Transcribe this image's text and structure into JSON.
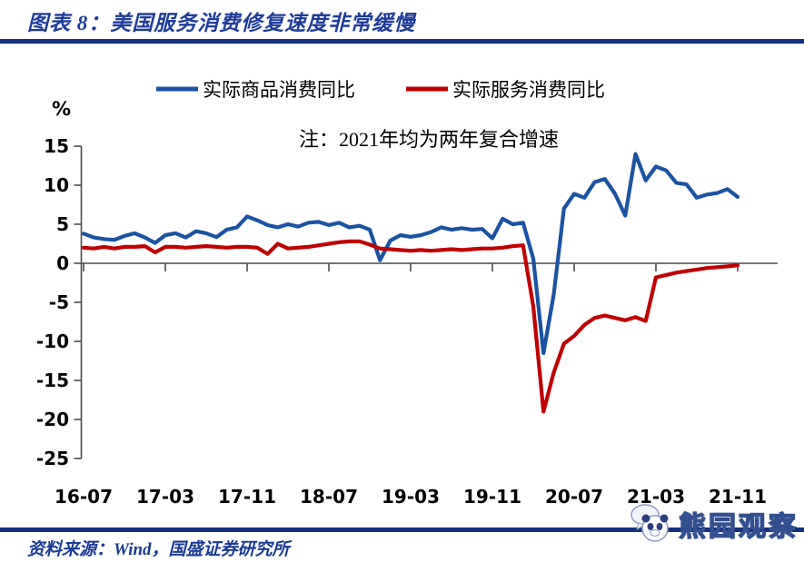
{
  "header": {
    "title": "图表 8：美国服务消费修复速度非常缓慢"
  },
  "footer": {
    "source": "资料来源：Wind，国盛证券研究所",
    "watermark": "熊园观察"
  },
  "colors": {
    "accent_blue_text": "#1a3a94",
    "divider_rule": "#14317c",
    "goods_line": "#1a53a3",
    "services_line": "#c00000",
    "axis": "#4a4a4a"
  },
  "chart_data": {
    "type": "line",
    "unit_label": "%",
    "note": "注：2021年均为两年复合增速",
    "legend_position": "top",
    "grid": false,
    "ylim": [
      -25,
      15
    ],
    "y_ticks": [
      15,
      10,
      5,
      0,
      -5,
      -10,
      -15,
      -20,
      -25
    ],
    "x_tick_labels": [
      "16-07",
      "17-03",
      "17-11",
      "18-07",
      "19-03",
      "19-11",
      "20-07",
      "21-03",
      "21-11"
    ],
    "x": [
      "16-07",
      "16-08",
      "16-09",
      "16-10",
      "16-11",
      "16-12",
      "17-01",
      "17-02",
      "17-03",
      "17-04",
      "17-05",
      "17-06",
      "17-07",
      "17-08",
      "17-09",
      "17-10",
      "17-11",
      "17-12",
      "18-01",
      "18-02",
      "18-03",
      "18-04",
      "18-05",
      "18-06",
      "18-07",
      "18-08",
      "18-09",
      "18-10",
      "18-11",
      "18-12",
      "19-01",
      "19-02",
      "19-03",
      "19-04",
      "19-05",
      "19-06",
      "19-07",
      "19-08",
      "19-09",
      "19-10",
      "19-11",
      "19-12",
      "20-01",
      "20-02",
      "20-03",
      "20-04",
      "20-05",
      "20-06",
      "20-07",
      "20-08",
      "20-09",
      "20-10",
      "20-11",
      "20-12",
      "21-01",
      "21-02",
      "21-03",
      "21-04",
      "21-05",
      "21-06",
      "21-07",
      "21-08",
      "21-09",
      "21-10",
      "21-11"
    ],
    "series": [
      {
        "name": "实际商品消费同比",
        "color": "#1a53a3",
        "values": [
          3.8,
          3.3,
          3.1,
          3.0,
          3.5,
          3.85,
          3.3,
          2.6,
          3.6,
          3.85,
          3.3,
          4.1,
          3.85,
          3.35,
          4.3,
          4.6,
          6.0,
          5.5,
          4.9,
          4.6,
          5.0,
          4.7,
          5.2,
          5.3,
          4.9,
          5.2,
          4.6,
          4.8,
          4.3,
          0.4,
          2.9,
          3.6,
          3.4,
          3.6,
          4.0,
          4.6,
          4.3,
          4.5,
          4.3,
          4.4,
          3.2,
          5.7,
          5.0,
          5.2,
          0.6,
          -11.5,
          -4.0,
          7.0,
          8.9,
          8.4,
          10.4,
          10.8,
          8.9,
          6.1,
          14.0,
          10.6,
          12.4,
          11.9,
          10.3,
          10.1,
          8.4,
          8.8,
          9.0,
          9.5,
          8.5
        ]
      },
      {
        "name": "实际服务消费同比",
        "color": "#c00000",
        "values": [
          2.0,
          1.9,
          2.1,
          1.9,
          2.1,
          2.1,
          2.2,
          1.4,
          2.1,
          2.1,
          2.0,
          2.1,
          2.2,
          2.1,
          2.0,
          2.1,
          2.1,
          2.0,
          1.2,
          2.5,
          1.9,
          2.0,
          2.1,
          2.3,
          2.5,
          2.7,
          2.8,
          2.8,
          2.4,
          1.9,
          1.8,
          1.7,
          1.6,
          1.7,
          1.6,
          1.7,
          1.8,
          1.7,
          1.8,
          1.9,
          1.9,
          2.0,
          2.2,
          2.3,
          -5.5,
          -19.0,
          -14.0,
          -10.3,
          -9.3,
          -7.9,
          -7.0,
          -6.7,
          -7.0,
          -7.3,
          -6.9,
          -7.4,
          -1.8,
          -1.5,
          -1.2,
          -1.0,
          -0.8,
          -0.6,
          -0.5,
          -0.4,
          -0.25
        ]
      }
    ]
  }
}
